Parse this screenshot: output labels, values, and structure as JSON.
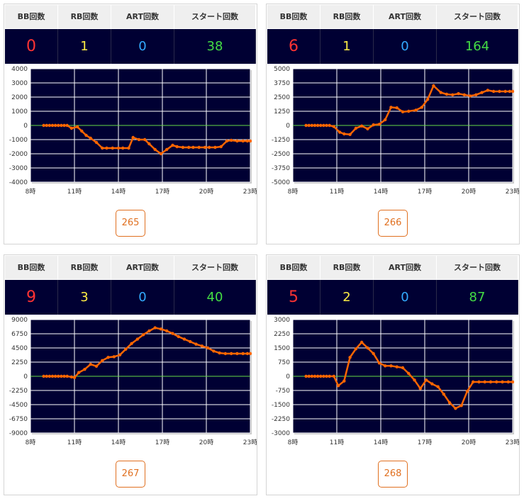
{
  "colors": {
    "bb": "#ff3333",
    "rb": "#ffee44",
    "art": "#33aaff",
    "start": "#44dd44",
    "plot_bg": "#000033",
    "line": "#ff6600",
    "zero_line": "#66dd44",
    "button": "#e07020"
  },
  "headers": {
    "bb": "BB回数",
    "rb": "RB回数",
    "art": "ART回数",
    "start": "スタート回数"
  },
  "x_tick_labels": [
    "8時",
    "11時",
    "14時",
    "17時",
    "20時",
    "23時"
  ],
  "panels": [
    {
      "machine": "265",
      "stats": {
        "bb": "0",
        "rb": "1",
        "art": "0",
        "start": "38"
      },
      "chart_data": {
        "type": "line",
        "xlim": [
          8,
          23
        ],
        "ylim": [
          -4000,
          4000
        ],
        "y_ticks": [
          4000,
          3000,
          2000,
          1000,
          0,
          -1000,
          -2000,
          -3000,
          -4000
        ],
        "y_tick_labels": [
          "4000",
          "3000",
          "2000",
          "1000",
          "0",
          "-1000",
          "-2000",
          "-3000",
          "-4000"
        ],
        "x": [
          8.9,
          9.1,
          9.3,
          9.5,
          9.7,
          9.9,
          10.1,
          10.3,
          10.5,
          10.8,
          11.2,
          11.5,
          11.8,
          12.1,
          12.5,
          12.9,
          13.2,
          13.6,
          14.0,
          14.3,
          14.7,
          15.0,
          15.4,
          15.8,
          16.1,
          16.5,
          16.9,
          17.3,
          17.7,
          18.0,
          18.4,
          18.8,
          19.1,
          19.5,
          19.9,
          20.2,
          20.6,
          21.0,
          21.4,
          21.7,
          22.1,
          22.5,
          22.8,
          23.0
        ],
        "y": [
          0,
          0,
          0,
          0,
          0,
          0,
          0,
          0,
          0,
          -200,
          -100,
          -400,
          -700,
          -900,
          -1200,
          -1600,
          -1600,
          -1600,
          -1600,
          -1600,
          -1600,
          -850,
          -1000,
          -1000,
          -1300,
          -1700,
          -2000,
          -1700,
          -1400,
          -1500,
          -1550,
          -1550,
          -1550,
          -1550,
          -1550,
          -1550,
          -1550,
          -1500,
          -1100,
          -1050,
          -1100,
          -1100,
          -1100,
          -1100
        ]
      }
    },
    {
      "machine": "266",
      "stats": {
        "bb": "6",
        "rb": "1",
        "art": "0",
        "start": "164"
      },
      "chart_data": {
        "type": "line",
        "xlim": [
          8,
          23
        ],
        "ylim": [
          -5000,
          5000
        ],
        "y_ticks": [
          5000,
          3750,
          2500,
          1250,
          0,
          -1250,
          -2500,
          -3750,
          -5000
        ],
        "y_tick_labels": [
          "5000",
          "3750",
          "2500",
          "1250",
          "0",
          "-1250",
          "-2500",
          "-3750",
          "-5000"
        ],
        "x": [
          8.9,
          9.1,
          9.3,
          9.5,
          9.7,
          9.9,
          10.1,
          10.3,
          10.5,
          10.8,
          11.2,
          11.5,
          11.9,
          12.3,
          12.7,
          13.1,
          13.5,
          13.9,
          14.3,
          14.7,
          15.1,
          15.5,
          15.9,
          16.4,
          16.8,
          17.2,
          17.6,
          18.1,
          18.5,
          18.9,
          19.3,
          19.7,
          20.1,
          20.5,
          20.9,
          21.3,
          21.7,
          22.1,
          22.5,
          22.8,
          23.0
        ],
        "y": [
          0,
          0,
          0,
          0,
          0,
          0,
          0,
          0,
          0,
          -100,
          -600,
          -750,
          -800,
          -250,
          -50,
          -300,
          50,
          100,
          500,
          1600,
          1550,
          1200,
          1250,
          1350,
          1600,
          2300,
          3500,
          2900,
          2750,
          2700,
          2800,
          2700,
          2600,
          2700,
          2900,
          3100,
          3000,
          3000,
          3000,
          3000,
          3000
        ]
      }
    },
    {
      "machine": "267",
      "stats": {
        "bb": "9",
        "rb": "3",
        "art": "0",
        "start": "40"
      },
      "chart_data": {
        "type": "line",
        "xlim": [
          8,
          23
        ],
        "ylim": [
          -9000,
          9000
        ],
        "y_ticks": [
          9000,
          6750,
          4500,
          2250,
          0,
          -2250,
          -4500,
          -6750,
          -9000
        ],
        "y_tick_labels": [
          "9000",
          "6750",
          "4500",
          "2250",
          "0",
          "-2250",
          "-4500",
          "-6750",
          "-9000"
        ],
        "x": [
          8.9,
          9.1,
          9.3,
          9.5,
          9.7,
          9.9,
          10.1,
          10.3,
          10.5,
          10.8,
          11.0,
          11.3,
          11.7,
          12.1,
          12.5,
          12.9,
          13.3,
          13.7,
          14.1,
          14.5,
          14.9,
          15.3,
          15.7,
          16.1,
          16.5,
          16.9,
          17.3,
          17.7,
          18.1,
          18.5,
          18.9,
          19.3,
          19.7,
          20.1,
          20.5,
          20.9,
          21.3,
          21.7,
          22.1,
          22.5,
          22.8,
          23.0
        ],
        "y": [
          0,
          0,
          0,
          0,
          0,
          0,
          0,
          0,
          0,
          -100,
          -200,
          600,
          1100,
          1900,
          1600,
          2500,
          3000,
          3100,
          3400,
          4300,
          5200,
          5900,
          6600,
          7200,
          7700,
          7500,
          7200,
          6800,
          6300,
          5900,
          5500,
          5100,
          4800,
          4500,
          4000,
          3700,
          3600,
          3600,
          3600,
          3600,
          3600,
          3600
        ]
      }
    },
    {
      "machine": "268",
      "stats": {
        "bb": "5",
        "rb": "2",
        "art": "0",
        "start": "87"
      },
      "chart_data": {
        "type": "line",
        "xlim": [
          8,
          23
        ],
        "ylim": [
          -3000,
          3000
        ],
        "y_ticks": [
          3000,
          2250,
          1500,
          750,
          0,
          -750,
          -1500,
          -2250,
          -3000
        ],
        "y_tick_labels": [
          "3000",
          "2250",
          "1500",
          "750",
          "0",
          "-750",
          "-1500",
          "-2250",
          "-3000"
        ],
        "x": [
          8.9,
          9.1,
          9.3,
          9.5,
          9.7,
          9.9,
          10.1,
          10.3,
          10.5,
          10.8,
          11.1,
          11.5,
          11.9,
          12.3,
          12.7,
          13.1,
          13.5,
          13.9,
          14.3,
          14.7,
          15.1,
          15.5,
          15.9,
          16.3,
          16.7,
          17.1,
          17.5,
          17.9,
          18.3,
          18.7,
          19.1,
          19.5,
          19.9,
          20.3,
          20.7,
          21.1,
          21.5,
          21.9,
          22.3,
          22.7,
          23.0
        ],
        "y": [
          0,
          0,
          0,
          0,
          0,
          0,
          0,
          0,
          0,
          0,
          -500,
          -250,
          1000,
          1450,
          1800,
          1500,
          1200,
          700,
          550,
          550,
          500,
          450,
          150,
          -200,
          -650,
          -200,
          -400,
          -550,
          -950,
          -1400,
          -1700,
          -1550,
          -800,
          -300,
          -300,
          -300,
          -300,
          -300,
          -300,
          -300,
          -300
        ]
      }
    }
  ]
}
